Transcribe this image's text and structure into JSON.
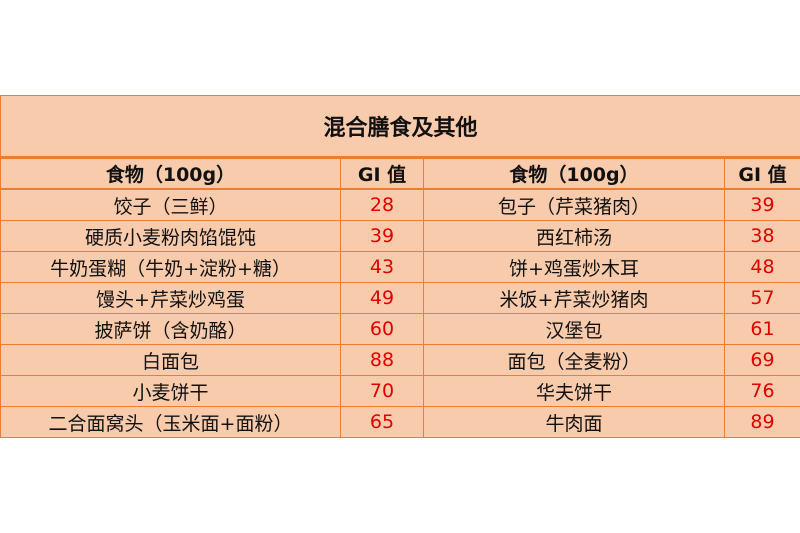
{
  "title": "混合膳食及其他",
  "headers": [
    "食物（100g）",
    "GI 值",
    "食物（100g）",
    "GI 值"
  ],
  "rows": [
    {
      "food1": "饺子（三鲜）",
      "gi1": "28",
      "food2": "包子（芹菜猪肉）",
      "gi2": "39"
    },
    {
      "food1": "硬质小麦粉肉馅馄饨",
      "gi1": "39",
      "food2": "西红柿汤",
      "gi2": "38"
    },
    {
      "food1": "牛奶蛋糊（牛奶+淀粉+糖）",
      "gi1": "43",
      "food2": "饼+鸡蛋炒木耳",
      "gi2": "48"
    },
    {
      "food1": "馒头+芹菜炒鸡蛋",
      "gi1": "49",
      "food2": "米饭+芹菜炒猪肉",
      "gi2": "57"
    },
    {
      "food1": "披萨饼（含奶酪）",
      "gi1": "60",
      "food2": "汉堡包",
      "gi2": "61"
    },
    {
      "food1": "白面包",
      "gi1": "88",
      "food2": "面包（全麦粉）",
      "gi2": "69"
    },
    {
      "food1": "小麦饼干",
      "gi1": "70",
      "food2": "华夫饼干",
      "gi2": "76"
    },
    {
      "food1": "二合面窝头（玉米面+面粉）",
      "gi1": "65",
      "food2": "牛肉面",
      "gi2": "89"
    }
  ],
  "colors": {
    "fill": "#f8cbad",
    "border": "#ed7d31",
    "value": "#e00000"
  }
}
